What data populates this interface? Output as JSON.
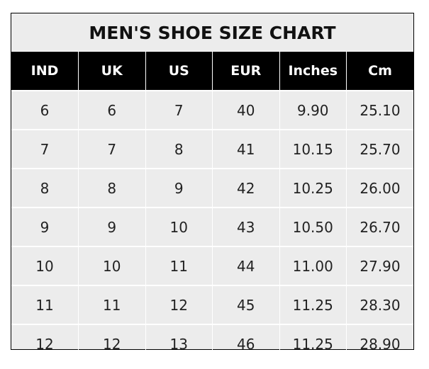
{
  "title": "MEN'S SHOE SIZE CHART",
  "columns": [
    "IND",
    "UK",
    "US",
    "EUR",
    "Inches",
    "Cm"
  ],
  "rows": [
    [
      "6",
      "6",
      "7",
      "40",
      "9.90",
      "25.10"
    ],
    [
      "7",
      "7",
      "8",
      "41",
      "10.15",
      "25.70"
    ],
    [
      "8",
      "8",
      "9",
      "42",
      "10.25",
      "26.00"
    ],
    [
      "9",
      "9",
      "10",
      "43",
      "10.50",
      "26.70"
    ],
    [
      "10",
      "10",
      "11",
      "44",
      "11.00",
      "27.90"
    ],
    [
      "11",
      "11",
      "12",
      "45",
      "11.25",
      "28.30"
    ],
    [
      "12",
      "12",
      "13",
      "46",
      "11.25",
      "28.90"
    ]
  ],
  "colors": {
    "header_bg": "#000000",
    "cell_bg": "#ececec",
    "grid": "#ffffff"
  }
}
